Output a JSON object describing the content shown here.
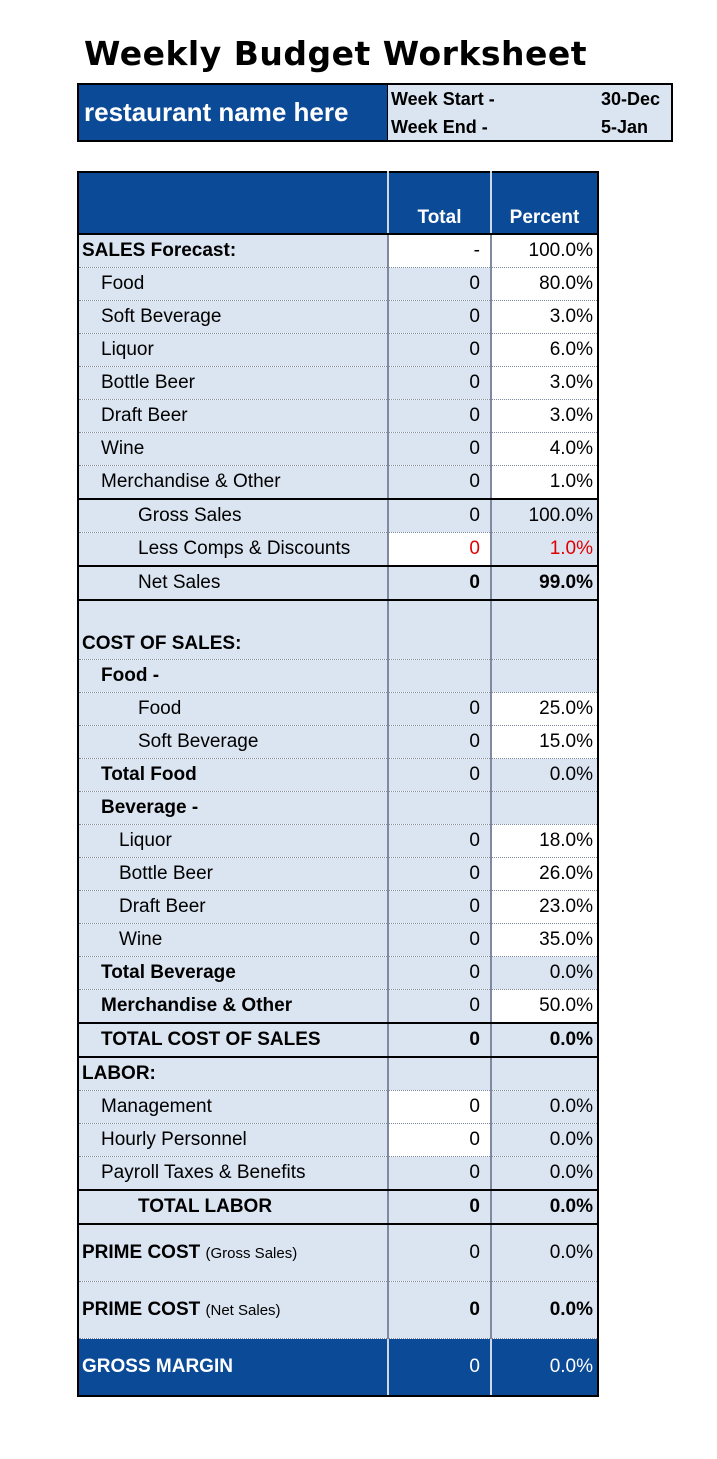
{
  "title": "Weekly Budget Worksheet",
  "header": {
    "restaurant_name": "restaurant name here",
    "week_start_label": "Week Start -",
    "week_start_value": "30-Dec",
    "week_end_label": "Week End -",
    "week_end_value": "5-Jan"
  },
  "columns": {
    "total": "Total",
    "percent": "Percent"
  },
  "sales": {
    "heading": "SALES Forecast:",
    "heading_total": "-",
    "heading_percent": "100.0%",
    "food": {
      "label": "Food",
      "total": "0",
      "percent": "80.0%"
    },
    "soft_beverage": {
      "label": "Soft Beverage",
      "total": "0",
      "percent": "3.0%"
    },
    "liquor": {
      "label": "Liquor",
      "total": "0",
      "percent": "6.0%"
    },
    "bottle_beer": {
      "label": "Bottle Beer",
      "total": "0",
      "percent": "3.0%"
    },
    "draft_beer": {
      "label": "Draft Beer",
      "total": "0",
      "percent": "3.0%"
    },
    "wine": {
      "label": "Wine",
      "total": "0",
      "percent": "4.0%"
    },
    "merchandise": {
      "label": "Merchandise & Other",
      "total": "0",
      "percent": "1.0%"
    },
    "gross_sales": {
      "label": "Gross Sales",
      "total": "0",
      "percent": "100.0%"
    },
    "comps": {
      "label": "Less Comps & Discounts",
      "total": "0",
      "percent": "1.0%"
    },
    "net_sales": {
      "label": "Net Sales",
      "total": "0",
      "percent": "99.0%"
    }
  },
  "cost_of_sales": {
    "heading": "COST OF SALES:",
    "food_heading": "Food -",
    "food": {
      "label": "Food",
      "total": "0",
      "percent": "25.0%"
    },
    "soft_beverage": {
      "label": "Soft Beverage",
      "total": "0",
      "percent": "15.0%"
    },
    "total_food": {
      "label": "Total Food",
      "total": "0",
      "percent": "0.0%"
    },
    "beverage_heading": "Beverage -",
    "liquor": {
      "label": "Liquor",
      "total": "0",
      "percent": "18.0%"
    },
    "bottle_beer": {
      "label": "Bottle Beer",
      "total": "0",
      "percent": "26.0%"
    },
    "draft_beer": {
      "label": "Draft Beer",
      "total": "0",
      "percent": "23.0%"
    },
    "wine": {
      "label": "Wine",
      "total": "0",
      "percent": "35.0%"
    },
    "total_beverage": {
      "label": "Total Beverage",
      "total": "0",
      "percent": "0.0%"
    },
    "merchandise": {
      "label": "Merchandise & Other",
      "total": "0",
      "percent": "50.0%"
    },
    "total_cost": {
      "label": "TOTAL COST OF SALES",
      "total": "0",
      "percent": "0.0%"
    }
  },
  "labor": {
    "heading": "LABOR:",
    "management": {
      "label": "Management",
      "total": "0",
      "percent": "0.0%"
    },
    "hourly": {
      "label": "Hourly Personnel",
      "total": "0",
      "percent": "0.0%"
    },
    "payroll": {
      "label": "Payroll Taxes & Benefits",
      "total": "0",
      "percent": "0.0%"
    },
    "total_labor": {
      "label": "TOTAL LABOR",
      "total": "0",
      "percent": "0.0%"
    }
  },
  "prime_gross": {
    "label": "PRIME COST",
    "note": "(Gross Sales)",
    "total": "0",
    "percent": "0.0%"
  },
  "prime_net": {
    "label": "PRIME COST",
    "note": "(Net Sales)",
    "total": "0",
    "percent": "0.0%"
  },
  "gross_margin": {
    "label": "GROSS MARGIN",
    "total": "0",
    "percent": "0.0%"
  }
}
